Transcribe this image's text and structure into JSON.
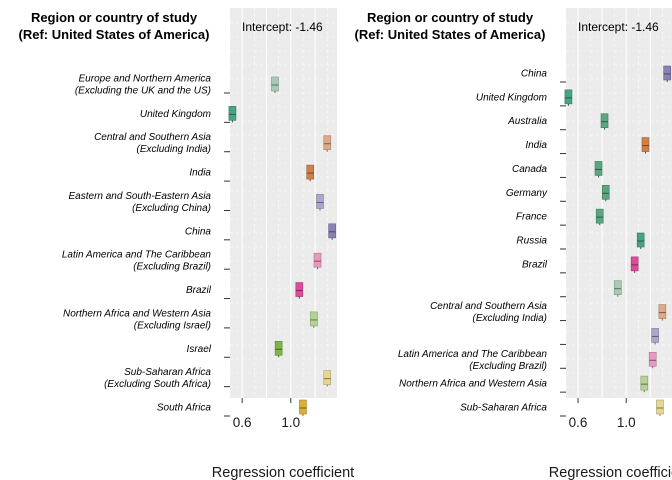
{
  "chart_data": [
    {
      "type": "forest",
      "title_line1": "Region or country of study",
      "title_line2": "(Ref: United States of America)",
      "annotation": "Intercept: -1.46",
      "xlabel": "Regression coefficient",
      "xlim": [
        0.5,
        1.38
      ],
      "xticks": [
        0.6,
        1.0
      ],
      "xtick_labels": [
        "0.6",
        "1.0"
      ],
      "grid": true,
      "rows": [
        {
          "label_lines": [
            "Europe and Northern America",
            "(Excluding the UK and the US)"
          ],
          "value": 0.87,
          "color": "#a6cbb4"
        },
        {
          "label_lines": [
            "United Kingdom"
          ],
          "value": 0.52,
          "color": "#46a383"
        },
        {
          "label_lines": [
            "Central and Southern Asia",
            "(Excluding India)"
          ],
          "value": 1.3,
          "color": "#dea98a"
        },
        {
          "label_lines": [
            "India"
          ],
          "value": 1.16,
          "color": "#d27e49"
        },
        {
          "label_lines": [
            "Eastern and South-Eastern Asia",
            "(Excluding China)"
          ],
          "value": 1.24,
          "color": "#aba7cc"
        },
        {
          "label_lines": [
            "China"
          ],
          "value": 1.34,
          "color": "#8a81b5"
        },
        {
          "label_lines": [
            "Latin America and The Caribbean",
            "(Excluding Brazil)"
          ],
          "value": 1.22,
          "color": "#e59ac1"
        },
        {
          "label_lines": [
            "Brazil"
          ],
          "value": 1.07,
          "color": "#dd4b9c"
        },
        {
          "label_lines": [
            "Northern Africa and Western Asia",
            "(Excluding Israel)"
          ],
          "value": 1.19,
          "color": "#b4d393"
        },
        {
          "label_lines": [
            "Israel"
          ],
          "value": 0.9,
          "color": "#7cb548"
        },
        {
          "label_lines": [
            "Sub-Saharan Africa",
            "(Excluding South Africa)"
          ],
          "value": 1.3,
          "color": "#e6d593"
        },
        {
          "label_lines": [
            "South Africa"
          ],
          "value": 1.1,
          "color": "#d9af34"
        }
      ]
    },
    {
      "type": "forest",
      "title_line1": "Region or country of study",
      "title_line2": "(Ref: United States of America)",
      "annotation": "Intercept: -1.46",
      "xlabel": "Regression coefficient",
      "xlim": [
        0.5,
        1.38
      ],
      "xticks": [
        0.6,
        1.0
      ],
      "xtick_labels": [
        "0.6",
        "1.0"
      ],
      "grid": true,
      "rows": [
        {
          "label_lines": [
            "China"
          ],
          "value": 1.34,
          "color": "#8a81b5"
        },
        {
          "label_lines": [
            "United Kingdom"
          ],
          "value": 0.52,
          "color": "#46a383"
        },
        {
          "label_lines": [
            "Australia"
          ],
          "value": 0.82,
          "color": "#5aa682"
        },
        {
          "label_lines": [
            "India"
          ],
          "value": 1.16,
          "color": "#d27e49"
        },
        {
          "label_lines": [
            "Canada"
          ],
          "value": 0.77,
          "color": "#5aa682"
        },
        {
          "label_lines": [
            "Germany"
          ],
          "value": 0.83,
          "color": "#5aa682"
        },
        {
          "label_lines": [
            "France"
          ],
          "value": 0.78,
          "color": "#5aa682"
        },
        {
          "label_lines": [
            "Russia"
          ],
          "value": 1.12,
          "color": "#46a383"
        },
        {
          "label_lines": [
            "Brazil"
          ],
          "value": 1.07,
          "color": "#dd4b9c"
        },
        {
          "label_lines": [],
          "value": 0.93,
          "color": "#a6cbb4"
        },
        {
          "label_lines": [
            "Central and Southern Asia",
            "(Excluding India)"
          ],
          "value": 1.3,
          "color": "#dea98a"
        },
        {
          "label_lines": [],
          "value": 1.24,
          "color": "#aba7cc"
        },
        {
          "label_lines": [
            "Latin America and The Caribbean",
            "(Excluding Brazil)"
          ],
          "value": 1.22,
          "color": "#e59ac1"
        },
        {
          "label_lines": [
            "Northern Africa and Western Asia"
          ],
          "value": 1.15,
          "color": "#b4d393"
        },
        {
          "label_lines": [
            "Sub-Saharan Africa"
          ],
          "value": 1.28,
          "color": "#e6d593"
        }
      ]
    }
  ]
}
